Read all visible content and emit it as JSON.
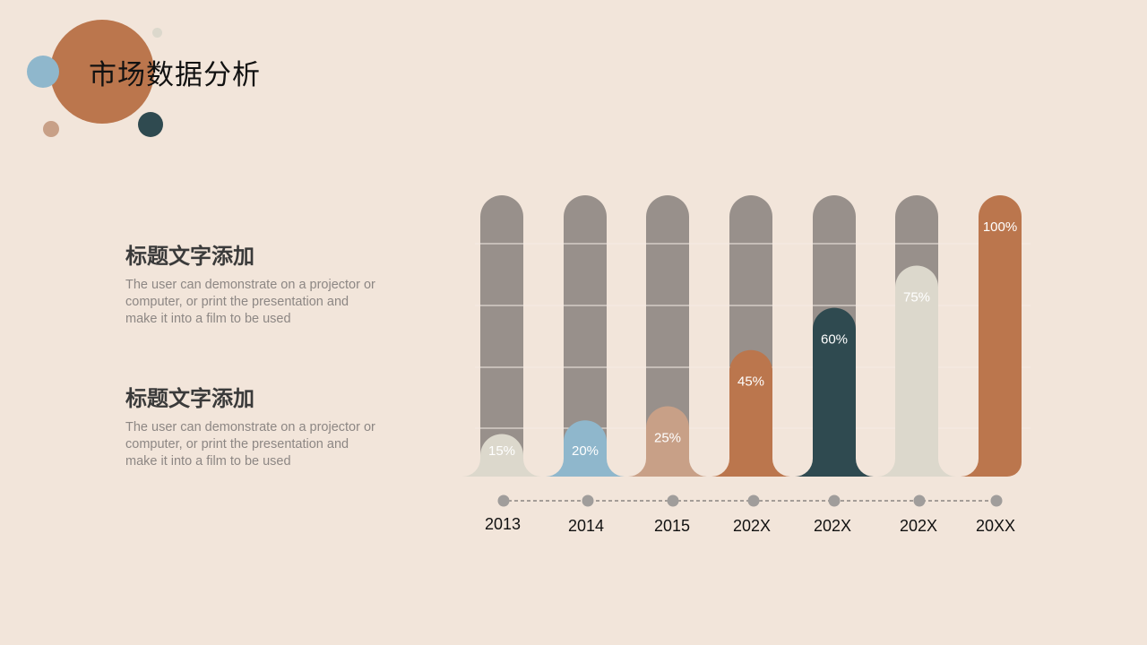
{
  "header": {
    "title": "市场数据分析"
  },
  "colors": {
    "background": "#f2e5da",
    "track": "#98908b",
    "brand_orange": "#bb764d",
    "brand_blue": "#8fb7cc",
    "brand_dark": "#2f4a50",
    "brand_tan": "#c8a087",
    "brand_light": "#dcd8cc",
    "dot": "#a09d9b"
  },
  "text_blocks": [
    {
      "heading": "标题文字添加",
      "body": "The user can demonstrate on a projector or computer, or print the presentation and make it into a film to be used"
    },
    {
      "heading": "标题文字添加",
      "body": "The user can demonstrate on a projector or computer, or print the presentation and make it into a film to be used"
    }
  ],
  "chart_data": {
    "type": "bar",
    "categories": [
      "2013",
      "2014",
      "2015",
      "202X",
      "202X",
      "202X",
      "20XX"
    ],
    "values": [
      15,
      20,
      25,
      45,
      60,
      75,
      100
    ],
    "labels": [
      "15%",
      "20%",
      "25%",
      "45%",
      "60%",
      "75%",
      "100%"
    ],
    "colors": [
      "#dcd8cc",
      "#8fb7cc",
      "#c8a087",
      "#bb764d",
      "#2f4a50",
      "#dcd8cc",
      "#bb764d"
    ],
    "label_colors": [
      "#ffffff",
      "#ffffff",
      "#ffffff",
      "#ffffff",
      "#ffffff",
      "#ffffff",
      "#ffffff"
    ],
    "ylim": [
      0,
      100
    ],
    "unit": "%"
  }
}
